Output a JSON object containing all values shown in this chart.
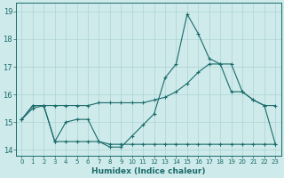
{
  "xlabel": "Humidex (Indice chaleur)",
  "bg_color": "#ceeaea",
  "line_color": "#1a6b6b",
  "grid_color": "#aed4d4",
  "xlim": [
    -0.5,
    23.5
  ],
  "ylim": [
    13.8,
    19.3
  ],
  "yticks": [
    14,
    15,
    16,
    17,
    18,
    19
  ],
  "xticks": [
    0,
    1,
    2,
    3,
    4,
    5,
    6,
    7,
    8,
    9,
    10,
    11,
    12,
    13,
    14,
    15,
    16,
    17,
    18,
    19,
    20,
    21,
    22,
    23
  ],
  "series1_x": [
    0,
    1,
    2,
    3,
    4,
    5,
    6,
    7,
    8,
    9,
    10,
    11,
    12,
    13,
    14,
    15,
    16,
    17,
    18,
    19,
    20,
    21,
    22,
    23
  ],
  "series1_y": [
    15.1,
    15.6,
    15.6,
    14.3,
    15.0,
    15.1,
    15.1,
    14.3,
    14.1,
    14.1,
    14.5,
    14.9,
    15.3,
    16.6,
    17.1,
    18.9,
    18.2,
    17.3,
    17.1,
    16.1,
    16.1,
    15.8,
    15.6,
    14.2
  ],
  "series2_x": [
    0,
    1,
    2,
    3,
    4,
    5,
    6,
    7,
    8,
    9,
    10,
    11,
    12,
    13,
    14,
    15,
    16,
    17,
    18,
    19,
    20,
    21,
    22,
    23
  ],
  "series2_y": [
    15.1,
    15.6,
    15.6,
    14.3,
    14.3,
    14.3,
    14.3,
    14.3,
    14.2,
    14.2,
    14.2,
    14.2,
    14.2,
    14.2,
    14.2,
    14.2,
    14.2,
    14.2,
    14.2,
    14.2,
    14.2,
    14.2,
    14.2,
    14.2
  ],
  "series3_x": [
    0,
    1,
    2,
    3,
    4,
    5,
    6,
    7,
    8,
    9,
    10,
    11,
    12,
    13,
    14,
    15,
    16,
    17,
    18,
    19,
    20,
    21,
    22,
    23
  ],
  "series3_y": [
    15.1,
    15.5,
    15.6,
    15.6,
    15.6,
    15.6,
    15.6,
    15.7,
    15.7,
    15.7,
    15.7,
    15.7,
    15.8,
    15.9,
    16.1,
    16.4,
    16.8,
    17.1,
    17.1,
    17.1,
    16.1,
    15.8,
    15.6,
    15.6
  ]
}
